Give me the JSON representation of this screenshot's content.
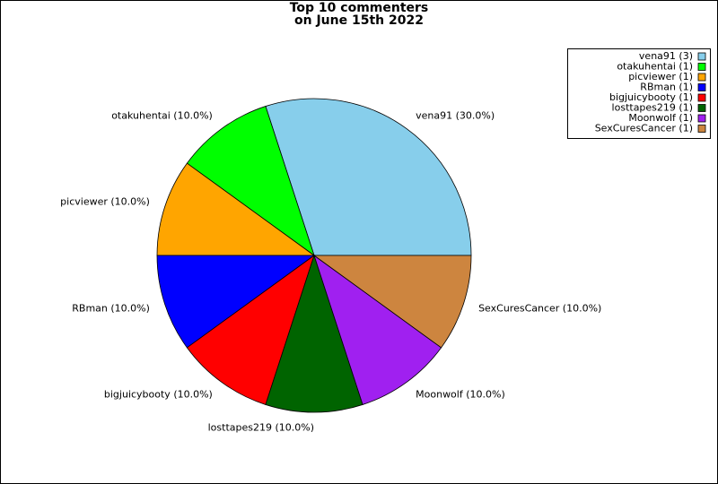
{
  "chart_data": {
    "type": "pie",
    "title": "Top 10 commenters\non June 15th 2022",
    "categories": [
      "vena91",
      "otakuhentai",
      "picviewer",
      "RBman",
      "bigjuicybooty",
      "losttapes219",
      "Moonwolf",
      "SexCuresCancer"
    ],
    "values": [
      30,
      10,
      10,
      10,
      10,
      10,
      10,
      10
    ],
    "value_labels": [
      "vena91 (30.0%)",
      "otakuhentai (10.0%)",
      "picviewer (10.0%)",
      "RBman (10.0%)",
      "bigjuicybooty (10.0%)",
      "losttapes219 (10.0%)",
      "Moonwolf (10.0%)",
      "SexCuresCancer (10.0%)"
    ],
    "legend_labels": [
      "vena91 (3)",
      "otakuhentai (1)",
      "picviewer (1)",
      "RBman (1)",
      "bigjuicybooty (1)",
      "losttapes219 (1)",
      "Moonwolf (1)",
      "SexCuresCancer (1)"
    ],
    "colors": [
      "#87ceeb",
      "#00ff00",
      "#ffa500",
      "#0000ff",
      "#ff0000",
      "#006400",
      "#a020f0",
      "#cd853f"
    ],
    "legend": "upper right"
  }
}
